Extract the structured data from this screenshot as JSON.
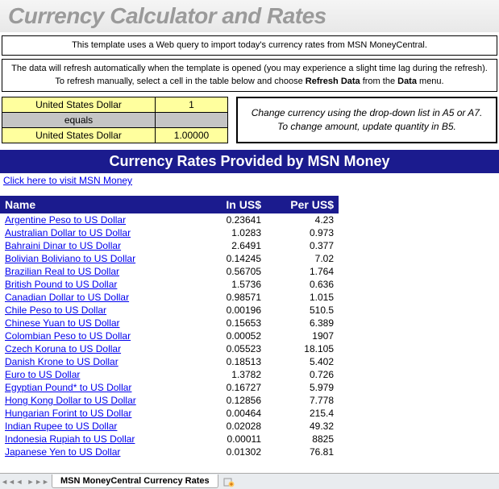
{
  "title": "Currency Calculator and Rates",
  "desc1": "This template uses a Web query to import today's currency rates from MSN MoneyCentral.",
  "desc2_a": "The data will refresh automatically when the template is opened (you may experience a slight time lag during the refresh). To refresh manually, select a cell in the table below and choose ",
  "desc2_b": "Refresh Data",
  "desc2_c": " from the ",
  "desc2_d": "Data",
  "desc2_e": " menu.",
  "calc": {
    "from_currency": "United States Dollar",
    "from_value": "1",
    "equals": "equals",
    "to_currency": "United States Dollar",
    "to_value": "1.00000"
  },
  "instruction": "Change currency using the drop-down list in A5 or A7. To change amount, update quantity in B5.",
  "rates_header": "Currency Rates Provided by MSN Money",
  "visit_link": "Click here to visit MSN Money",
  "columns": {
    "name": "Name",
    "in": "In US$",
    "per": "Per US$"
  },
  "rows": [
    {
      "name": "Argentine Peso to US Dollar",
      "in": "0.23641",
      "per": "4.23"
    },
    {
      "name": "Australian Dollar to US Dollar",
      "in": "1.0283",
      "per": "0.973"
    },
    {
      "name": "Bahraini Dinar to US Dollar",
      "in": "2.6491",
      "per": "0.377"
    },
    {
      "name": "Bolivian Boliviano to US Dollar",
      "in": "0.14245",
      "per": "7.02"
    },
    {
      "name": "Brazilian Real to US Dollar",
      "in": "0.56705",
      "per": "1.764"
    },
    {
      "name": "British Pound to US Dollar",
      "in": "1.5736",
      "per": "0.636"
    },
    {
      "name": "Canadian Dollar to US Dollar",
      "in": "0.98571",
      "per": "1.015"
    },
    {
      "name": "Chile Peso to US Dollar",
      "in": "0.00196",
      "per": "510.5"
    },
    {
      "name": "Chinese Yuan to US Dollar",
      "in": "0.15653",
      "per": "6.389"
    },
    {
      "name": "Colombian Peso to US Dollar",
      "in": "0.00052",
      "per": "1907"
    },
    {
      "name": "Czech Koruna to US Dollar",
      "in": "0.05523",
      "per": "18.105"
    },
    {
      "name": "Danish Krone to US Dollar",
      "in": "0.18513",
      "per": "5.402"
    },
    {
      "name": "Euro to US Dollar",
      "in": "1.3782",
      "per": "0.726"
    },
    {
      "name": "Egyptian Pound* to US Dollar",
      "in": "0.16727",
      "per": "5.979"
    },
    {
      "name": "Hong Kong Dollar to US Dollar",
      "in": "0.12856",
      "per": "7.778"
    },
    {
      "name": "Hungarian Forint to US Dollar",
      "in": "0.00464",
      "per": "215.4"
    },
    {
      "name": "Indian Rupee to US Dollar",
      "in": "0.02028",
      "per": "49.32"
    },
    {
      "name": "Indonesia Rupiah to US Dollar",
      "in": "0.00011",
      "per": "8825"
    },
    {
      "name": "Japanese Yen to US Dollar",
      "in": "0.01302",
      "per": "76.81"
    }
  ],
  "sheet_name": "MSN MoneyCentral Currency Rates",
  "colors": {
    "title_gray": "#9a9a9a",
    "cell_yellow": "#ffff9e",
    "cell_gray": "#c5c5c5",
    "header_navy": "#1b1b8e",
    "link_blue": "#0000ee"
  }
}
